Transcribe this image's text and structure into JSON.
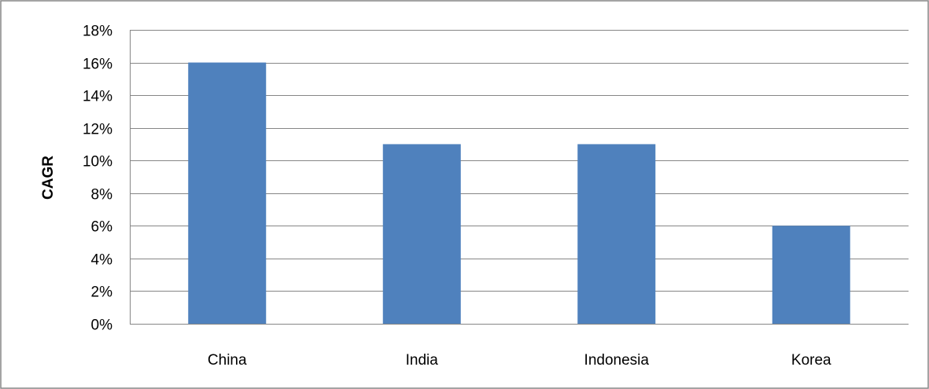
{
  "chart_data": {
    "type": "bar",
    "title": "",
    "xlabel": "",
    "ylabel": "CAGR",
    "categories": [
      "China",
      "India",
      "Indonesia",
      "Korea"
    ],
    "values": [
      0.16,
      0.11,
      0.11,
      0.06
    ],
    "ylim": [
      0,
      0.18
    ],
    "yticks": [
      0,
      0.02,
      0.04,
      0.06,
      0.08,
      0.1,
      0.12,
      0.14,
      0.16,
      0.18
    ],
    "ytick_labels": [
      "0%",
      "2%",
      "4%",
      "6%",
      "8%",
      "10%",
      "12%",
      "14%",
      "16%",
      "18%"
    ],
    "grid": true,
    "legend": "none",
    "colors": {
      "bar": "#4f81bd",
      "grid": "#868686",
      "border": "#868686",
      "text": "#000000"
    }
  }
}
